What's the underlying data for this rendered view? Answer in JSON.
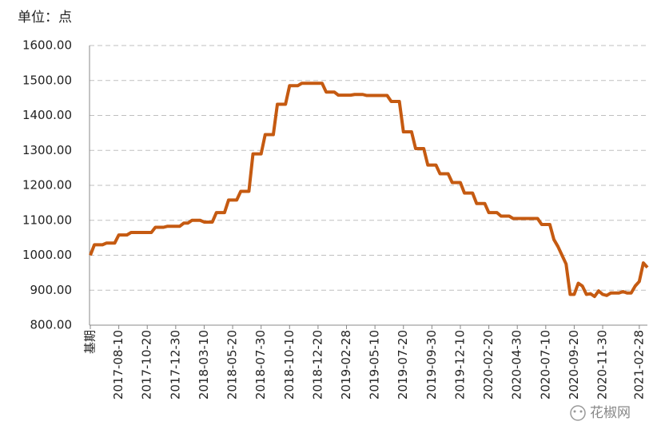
{
  "chart_data": {
    "type": "line",
    "unit_label": "单位：点",
    "watermark": "花椒网",
    "color": "#c55a11",
    "categories": [
      "基期",
      null,
      null,
      null,
      null,
      null,
      null,
      "2017-08-10",
      null,
      null,
      null,
      null,
      null,
      null,
      "2017-10-20",
      null,
      null,
      null,
      null,
      null,
      null,
      "2017-12-30",
      null,
      null,
      null,
      null,
      null,
      null,
      "2018-03-10",
      null,
      null,
      null,
      null,
      null,
      null,
      "2018-05-20",
      null,
      null,
      null,
      null,
      null,
      null,
      "2018-07-30",
      null,
      null,
      null,
      null,
      null,
      null,
      "2018-10-10",
      null,
      null,
      null,
      null,
      null,
      null,
      "2018-12-20",
      null,
      null,
      null,
      null,
      null,
      null,
      "2019-02-28",
      null,
      null,
      null,
      null,
      null,
      null,
      "2019-05-10",
      null,
      null,
      null,
      null,
      null,
      null,
      "2019-07-20",
      null,
      null,
      null,
      null,
      null,
      null,
      "2019-09-30",
      null,
      null,
      null,
      null,
      null,
      null,
      "2019-12-10",
      null,
      null,
      null,
      null,
      null,
      null,
      "2020-02-20",
      null,
      null,
      null,
      null,
      null,
      null,
      "2020-04-30",
      null,
      null,
      null,
      null,
      null,
      null,
      "2020-07-10",
      null,
      null,
      null,
      null,
      null,
      null,
      "2020-09-20",
      null,
      null,
      null,
      null,
      null,
      null,
      "2020-11-30",
      null,
      null,
      null,
      null,
      null,
      null,
      null,
      null,
      "2021-02-28",
      null,
      null
    ],
    "values": [
      1000,
      1030,
      1030,
      1030,
      1035,
      1035,
      1035,
      1058,
      1058,
      1058,
      1065,
      1065,
      1065,
      1065,
      1065,
      1065,
      1080,
      1080,
      1080,
      1083,
      1083,
      1083,
      1083,
      1092,
      1092,
      1100,
      1100,
      1100,
      1095,
      1095,
      1095,
      1122,
      1122,
      1122,
      1158,
      1158,
      1158,
      1183,
      1183,
      1183,
      1290,
      1290,
      1290,
      1345,
      1345,
      1345,
      1432,
      1432,
      1432,
      1485,
      1485,
      1485,
      1492,
      1492,
      1492,
      1492,
      1492,
      1492,
      1467,
      1467,
      1467,
      1458,
      1458,
      1458,
      1458,
      1460,
      1460,
      1460,
      1457,
      1457,
      1457,
      1457,
      1457,
      1457,
      1440,
      1440,
      1440,
      1353,
      1353,
      1353,
      1305,
      1305,
      1305,
      1258,
      1258,
      1258,
      1233,
      1233,
      1233,
      1208,
      1208,
      1208,
      1178,
      1178,
      1178,
      1148,
      1148,
      1148,
      1122,
      1122,
      1122,
      1112,
      1112,
      1112,
      1105,
      1105,
      1105,
      1105,
      1105,
      1105,
      1105,
      1088,
      1088,
      1088,
      1045,
      1025,
      1000,
      975,
      888,
      888,
      920,
      912,
      888,
      890,
      882,
      898,
      888,
      885,
      892,
      892,
      892,
      896,
      892,
      892,
      912,
      925,
      978,
      965
    ],
    "ylim": [
      800,
      1600
    ],
    "yticks": [
      {
        "value": 800,
        "label": "800.00"
      },
      {
        "value": 900,
        "label": "900.00"
      },
      {
        "value": 1000,
        "label": "1000.00"
      },
      {
        "value": 1100,
        "label": "1100.00"
      },
      {
        "value": 1200,
        "label": "1200.00"
      },
      {
        "value": 1300,
        "label": "1300.00"
      },
      {
        "value": 1400,
        "label": "1400.00"
      },
      {
        "value": 1500,
        "label": "1500.00"
      },
      {
        "value": 1600,
        "label": "1600.00"
      }
    ],
    "grid": true
  }
}
